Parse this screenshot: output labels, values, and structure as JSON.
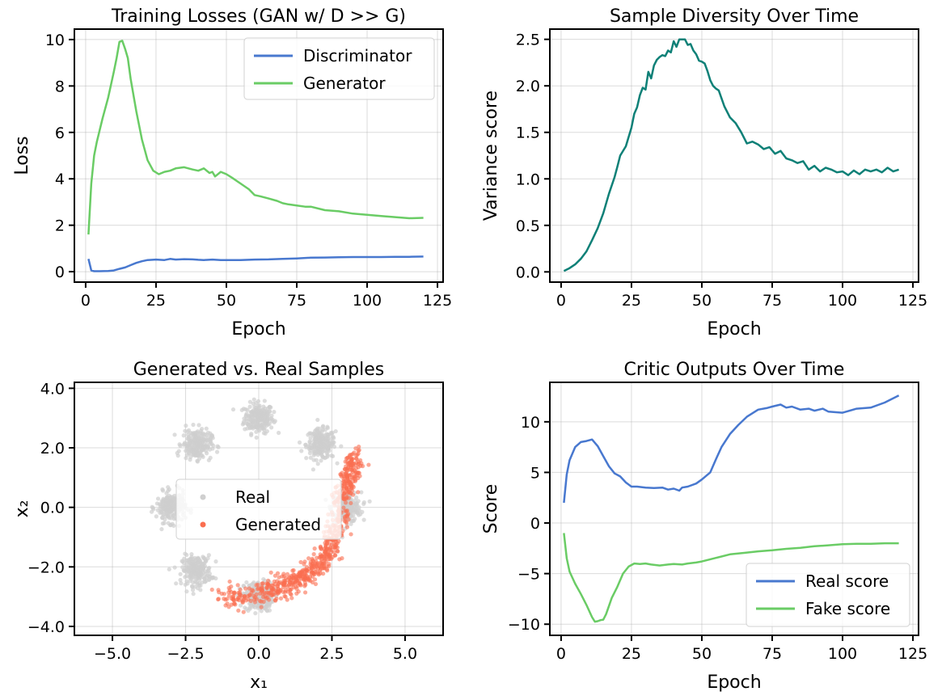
{
  "chart_data": [
    {
      "type": "line",
      "title": "Training Losses  (GAN w/ D >> G)",
      "xlabel": "Epoch",
      "ylabel": "Loss",
      "xlim": [
        -4,
        127
      ],
      "ylim": [
        -0.45,
        10.45
      ],
      "xticks": [
        0,
        25,
        50,
        75,
        100,
        125
      ],
      "yticks": [
        0,
        2,
        4,
        6,
        8,
        10
      ],
      "grid": true,
      "legend": "top-right",
      "series": [
        {
          "name": "Discriminator",
          "color": "#4878cf",
          "x": [
            1,
            2,
            3,
            5,
            8,
            10,
            12,
            14,
            16,
            18,
            20,
            22,
            25,
            28,
            30,
            32,
            35,
            38,
            40,
            42,
            45,
            48,
            50,
            55,
            60,
            65,
            70,
            75,
            80,
            85,
            90,
            95,
            100,
            105,
            110,
            115,
            120
          ],
          "y": [
            0.55,
            0.05,
            0.02,
            0.02,
            0.03,
            0.05,
            0.12,
            0.18,
            0.28,
            0.38,
            0.45,
            0.5,
            0.52,
            0.5,
            0.55,
            0.52,
            0.54,
            0.53,
            0.51,
            0.5,
            0.52,
            0.5,
            0.5,
            0.5,
            0.52,
            0.53,
            0.55,
            0.57,
            0.6,
            0.61,
            0.62,
            0.63,
            0.63,
            0.63,
            0.64,
            0.64,
            0.65
          ]
        },
        {
          "name": "Generator",
          "color": "#6acc65",
          "x": [
            1,
            2,
            3,
            4,
            6,
            8,
            10,
            11,
            12,
            13,
            14,
            15,
            16,
            18,
            20,
            22,
            24,
            26,
            28,
            30,
            32,
            35,
            38,
            40,
            42,
            44,
            45,
            46,
            48,
            50,
            52,
            55,
            58,
            60,
            62,
            65,
            68,
            70,
            72,
            75,
            78,
            80,
            85,
            90,
            95,
            100,
            105,
            110,
            115,
            120
          ],
          "y": [
            1.6,
            3.8,
            5.0,
            5.6,
            6.6,
            7.5,
            8.6,
            9.2,
            9.9,
            9.95,
            9.6,
            9.2,
            8.3,
            6.9,
            5.7,
            4.8,
            4.35,
            4.2,
            4.3,
            4.35,
            4.45,
            4.5,
            4.4,
            4.35,
            4.45,
            4.25,
            4.3,
            4.1,
            4.3,
            4.2,
            4.05,
            3.8,
            3.55,
            3.3,
            3.25,
            3.15,
            3.05,
            2.95,
            2.9,
            2.85,
            2.8,
            2.8,
            2.65,
            2.6,
            2.5,
            2.45,
            2.4,
            2.35,
            2.3,
            2.32
          ]
        }
      ]
    },
    {
      "type": "line",
      "title": "Sample Diversity Over Time",
      "xlabel": "Epoch",
      "ylabel": "Variance score",
      "xlim": [
        -4,
        127
      ],
      "ylim": [
        -0.11,
        2.61
      ],
      "xticks": [
        0,
        25,
        50,
        75,
        100,
        125
      ],
      "yticks": [
        0.0,
        0.5,
        1.0,
        1.5,
        2.0,
        2.5
      ],
      "grid": true,
      "series": [
        {
          "name": "",
          "color": "#0e8077",
          "x": [
            1,
            3,
            5,
            7,
            9,
            11,
            13,
            15,
            17,
            19,
            20,
            21,
            23,
            25,
            26,
            27,
            28,
            29,
            30,
            31,
            32,
            33,
            34,
            35,
            36,
            37,
            38,
            39,
            40,
            41,
            42,
            43,
            44,
            45,
            46,
            47,
            48,
            49,
            50,
            51,
            52,
            53,
            54,
            55,
            56,
            58,
            60,
            62,
            64,
            66,
            68,
            70,
            72,
            74,
            76,
            78,
            80,
            82,
            84,
            86,
            88,
            90,
            92,
            94,
            96,
            98,
            100,
            102,
            104,
            106,
            108,
            110,
            112,
            114,
            116,
            118,
            120
          ],
          "y": [
            0.01,
            0.04,
            0.08,
            0.14,
            0.22,
            0.34,
            0.47,
            0.63,
            0.84,
            1.02,
            1.13,
            1.25,
            1.35,
            1.55,
            1.7,
            1.77,
            1.9,
            1.98,
            1.96,
            2.15,
            2.08,
            2.22,
            2.28,
            2.31,
            2.33,
            2.32,
            2.38,
            2.36,
            2.48,
            2.42,
            2.5,
            2.5,
            2.5,
            2.44,
            2.45,
            2.38,
            2.34,
            2.27,
            2.26,
            2.24,
            2.16,
            2.06,
            2.0,
            1.97,
            1.95,
            1.78,
            1.66,
            1.6,
            1.5,
            1.38,
            1.4,
            1.37,
            1.32,
            1.34,
            1.27,
            1.3,
            1.22,
            1.2,
            1.17,
            1.19,
            1.1,
            1.14,
            1.08,
            1.12,
            1.1,
            1.07,
            1.08,
            1.04,
            1.09,
            1.05,
            1.1,
            1.08,
            1.1,
            1.07,
            1.12,
            1.08,
            1.1
          ]
        }
      ]
    },
    {
      "type": "scatter",
      "title": "Generated vs. Real Samples",
      "xlabel": "x₁",
      "ylabel": "x₂",
      "xlim": [
        -6.3,
        6.3
      ],
      "ylim": [
        -4.3,
        4.2
      ],
      "xticks": [
        -5.0,
        -2.5,
        0.0,
        2.5,
        5.0
      ],
      "yticks": [
        -4,
        -2,
        0,
        2,
        4
      ],
      "grid": true,
      "legend": "center",
      "series": [
        {
          "name": "Real",
          "color": "#cfcfcf",
          "clusters": [
            [
              0,
              3
            ],
            [
              2.12,
              2.12
            ],
            [
              3,
              0
            ],
            [
              0,
              -3
            ],
            [
              -2.12,
              -2.12
            ],
            [
              -3,
              0
            ],
            [
              -2.12,
              2.12
            ]
          ],
          "spread": 0.25
        },
        {
          "name": "Generated",
          "color": "#fa6e50",
          "curve_x": [
            -1.3,
            -0.5,
            0.3,
            1.0,
            1.6,
            2.1,
            2.5,
            2.7,
            2.9,
            3.1,
            3.3
          ],
          "curve_y": [
            -3.1,
            -3.0,
            -2.8,
            -2.6,
            -2.3,
            -1.9,
            -1.3,
            -0.5,
            0.4,
            1.1,
            1.8
          ]
        }
      ]
    },
    {
      "type": "line",
      "title": "Critic Outputs Over Time",
      "xlabel": "Epoch",
      "ylabel": "Score",
      "xlim": [
        -4,
        127
      ],
      "ylim": [
        -11.1,
        13.9
      ],
      "xticks": [
        0,
        25,
        50,
        75,
        100,
        125
      ],
      "yticks": [
        -10,
        -5,
        0,
        5,
        10
      ],
      "grid": true,
      "legend": "bottom-right",
      "series": [
        {
          "name": "Real score",
          "color": "#4878cf",
          "x": [
            1,
            2,
            3,
            5,
            7,
            9,
            11,
            13,
            15,
            17,
            19,
            21,
            23,
            25,
            27,
            30,
            33,
            36,
            38,
            40,
            42,
            43,
            45,
            48,
            50,
            53,
            55,
            57,
            60,
            63,
            66,
            70,
            73,
            75,
            78,
            80,
            82,
            85,
            88,
            90,
            93,
            95,
            100,
            105,
            110,
            115,
            120
          ],
          "y": [
            2,
            4.8,
            6.2,
            7.5,
            8.0,
            8.1,
            8.25,
            7.6,
            6.6,
            5.6,
            4.9,
            4.6,
            4.0,
            3.6,
            3.6,
            3.5,
            3.45,
            3.5,
            3.3,
            3.4,
            3.2,
            3.5,
            3.6,
            3.9,
            4.3,
            5.0,
            6.3,
            7.5,
            8.8,
            9.7,
            10.5,
            11.2,
            11.35,
            11.5,
            11.7,
            11.4,
            11.5,
            11.2,
            11.3,
            11.1,
            11.3,
            11.0,
            10.9,
            11.3,
            11.4,
            11.9,
            12.6
          ]
        },
        {
          "name": "Fake score",
          "color": "#6acc65",
          "x": [
            1,
            2,
            3,
            5,
            7,
            9,
            11,
            12,
            13,
            14,
            15,
            16,
            17,
            18,
            20,
            22,
            24,
            26,
            28,
            30,
            32,
            35,
            38,
            40,
            43,
            45,
            48,
            50,
            55,
            60,
            65,
            70,
            75,
            80,
            85,
            90,
            95,
            100,
            105,
            110,
            115,
            120
          ],
          "y": [
            -1,
            -3.5,
            -4.8,
            -6.0,
            -7.0,
            -8.1,
            -9.3,
            -9.75,
            -9.7,
            -9.6,
            -9.55,
            -9.0,
            -8.2,
            -7.4,
            -6.3,
            -5.0,
            -4.3,
            -4.0,
            -4.05,
            -4.0,
            -4.1,
            -4.2,
            -4.1,
            -4.05,
            -4.1,
            -4.0,
            -3.9,
            -3.8,
            -3.45,
            -3.1,
            -2.95,
            -2.8,
            -2.7,
            -2.55,
            -2.45,
            -2.3,
            -2.2,
            -2.1,
            -2.05,
            -2.05,
            -2.0,
            -2.0
          ]
        }
      ]
    }
  ]
}
